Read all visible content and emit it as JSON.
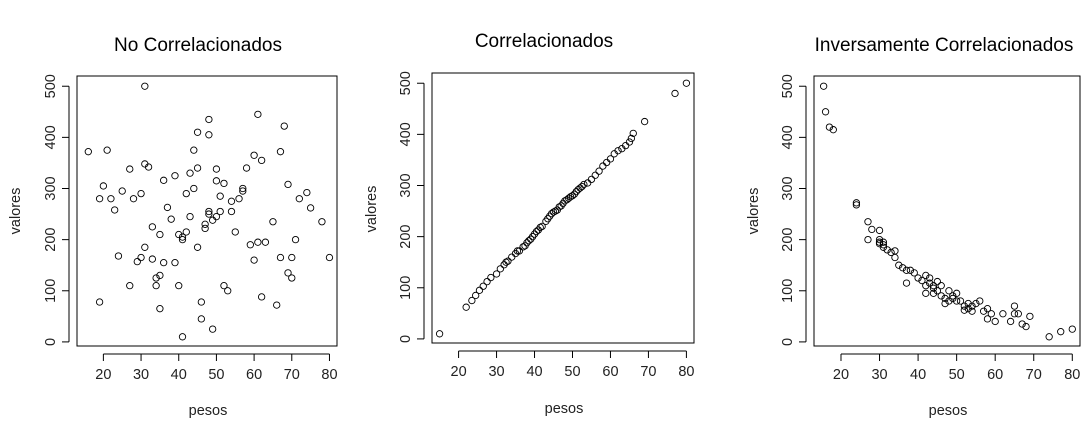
{
  "chart_data": [
    {
      "type": "scatter",
      "title": "No Correlacionados",
      "xlabel": "pesos",
      "ylabel": "valores",
      "xlim": [
        13,
        82
      ],
      "ylim": [
        -8,
        520
      ],
      "xticks": [
        20,
        30,
        40,
        50,
        60,
        70,
        80
      ],
      "yticks": [
        0,
        100,
        200,
        300,
        400,
        500
      ],
      "grid": false,
      "x": [
        16,
        19,
        19,
        20,
        21,
        22,
        23,
        24,
        25,
        27,
        27,
        28,
        29,
        30,
        30,
        31,
        31,
        31,
        32,
        33,
        33,
        34,
        34,
        35,
        35,
        35,
        36,
        36,
        37,
        38,
        39,
        39,
        40,
        40,
        41,
        41,
        41,
        42,
        42,
        43,
        43,
        44,
        44,
        45,
        45,
        45,
        46,
        46,
        47,
        47,
        48,
        48,
        48,
        48,
        49,
        49,
        50,
        50,
        50,
        51,
        51,
        52,
        52,
        53,
        54,
        54,
        55,
        56,
        57,
        57,
        58,
        59,
        60,
        60,
        61,
        61,
        62,
        62,
        63,
        65,
        66,
        67,
        67,
        68,
        69,
        69,
        70,
        70,
        71,
        72,
        74,
        75,
        78,
        80
      ],
      "y": [
        372,
        280,
        78,
        305,
        375,
        280,
        258,
        168,
        295,
        110,
        338,
        280,
        157,
        290,
        165,
        348,
        500,
        185,
        342,
        162,
        225,
        125,
        110,
        210,
        130,
        65,
        155,
        316,
        263,
        240,
        155,
        325,
        210,
        110,
        200,
        205,
        10,
        290,
        215,
        330,
        245,
        375,
        300,
        410,
        340,
        185,
        78,
        45,
        222,
        230,
        435,
        405,
        255,
        250,
        238,
        25,
        245,
        338,
        315,
        255,
        285,
        310,
        110,
        100,
        275,
        255,
        215,
        280,
        295,
        300,
        340,
        190,
        365,
        160,
        445,
        195,
        355,
        88,
        195,
        235,
        72,
        372,
        165,
        422,
        308,
        135,
        165,
        125,
        200,
        280,
        292,
        262,
        235,
        165
      ]
    },
    {
      "type": "scatter",
      "title": "Correlacionados",
      "xlabel": "pesos",
      "ylabel": "valores",
      "xlim": [
        13,
        82
      ],
      "ylim": [
        -8,
        520
      ],
      "xticks": [
        20,
        30,
        40,
        50,
        60,
        70,
        80
      ],
      "yticks": [
        0,
        100,
        200,
        300,
        400,
        500
      ],
      "grid": false,
      "x": [
        15,
        22,
        23.5,
        24.5,
        25.5,
        26.5,
        27.5,
        28.5,
        30,
        31,
        32,
        32.5,
        33,
        34,
        35,
        35.5,
        36,
        37,
        37.5,
        38,
        38.5,
        39,
        39.5,
        40,
        40.5,
        41,
        41.5,
        42,
        43,
        43.5,
        44,
        44.5,
        45,
        45.5,
        46,
        46.5,
        47,
        47.5,
        48,
        48.5,
        49,
        49.5,
        50,
        50.5,
        51,
        51.5,
        52,
        52.5,
        53,
        54,
        55,
        56,
        57,
        58,
        59,
        60,
        61,
        62,
        63,
        64,
        65,
        65.5,
        66,
        69,
        77,
        80
      ],
      "y": [
        10,
        62,
        75,
        85,
        95,
        103,
        112,
        120,
        127,
        137,
        145,
        150,
        152,
        160,
        167,
        172,
        172,
        180,
        182,
        188,
        192,
        195,
        200,
        205,
        210,
        213,
        218,
        220,
        230,
        235,
        240,
        245,
        248,
        250,
        252,
        258,
        260,
        265,
        270,
        272,
        275,
        278,
        280,
        283,
        288,
        292,
        295,
        298,
        302,
        305,
        312,
        320,
        328,
        338,
        345,
        352,
        362,
        368,
        372,
        378,
        385,
        392,
        402,
        425,
        480,
        500
      ]
    },
    {
      "type": "scatter",
      "title": "Inversamente Correlacionados",
      "xlabel": "pesos",
      "ylabel": "valores",
      "xlim": [
        13,
        82
      ],
      "ylim": [
        -8,
        520
      ],
      "xticks": [
        20,
        30,
        40,
        50,
        60,
        70,
        80
      ],
      "yticks": [
        0,
        100,
        200,
        300,
        400,
        500
      ],
      "grid": false,
      "x": [
        15.5,
        16,
        17,
        18,
        24,
        24,
        27,
        27,
        28,
        30,
        30,
        30,
        30,
        31,
        31,
        31,
        32,
        33,
        34,
        34,
        35,
        36,
        37,
        37,
        38,
        39,
        40,
        41,
        42,
        42,
        42,
        43,
        43,
        44,
        44,
        44,
        45,
        45,
        46,
        46,
        47,
        47,
        48,
        48,
        49,
        49,
        50,
        50,
        51,
        52,
        52,
        53,
        53,
        54,
        54,
        55,
        56,
        57,
        58,
        58,
        59,
        60,
        62,
        64,
        65,
        65,
        66,
        67,
        68,
        69,
        74,
        77,
        80
      ],
      "y": [
        500,
        450,
        420,
        415,
        272,
        268,
        235,
        200,
        220,
        218,
        200,
        195,
        192,
        195,
        190,
        185,
        180,
        175,
        178,
        165,
        150,
        145,
        140,
        115,
        140,
        135,
        125,
        120,
        130,
        110,
        95,
        125,
        115,
        110,
        105,
        95,
        100,
        118,
        110,
        90,
        85,
        75,
        100,
        80,
        85,
        90,
        95,
        80,
        80,
        70,
        62,
        75,
        65,
        60,
        70,
        75,
        80,
        60,
        45,
        65,
        55,
        40,
        55,
        40,
        70,
        55,
        55,
        35,
        30,
        50,
        10,
        20,
        25
      ]
    }
  ]
}
